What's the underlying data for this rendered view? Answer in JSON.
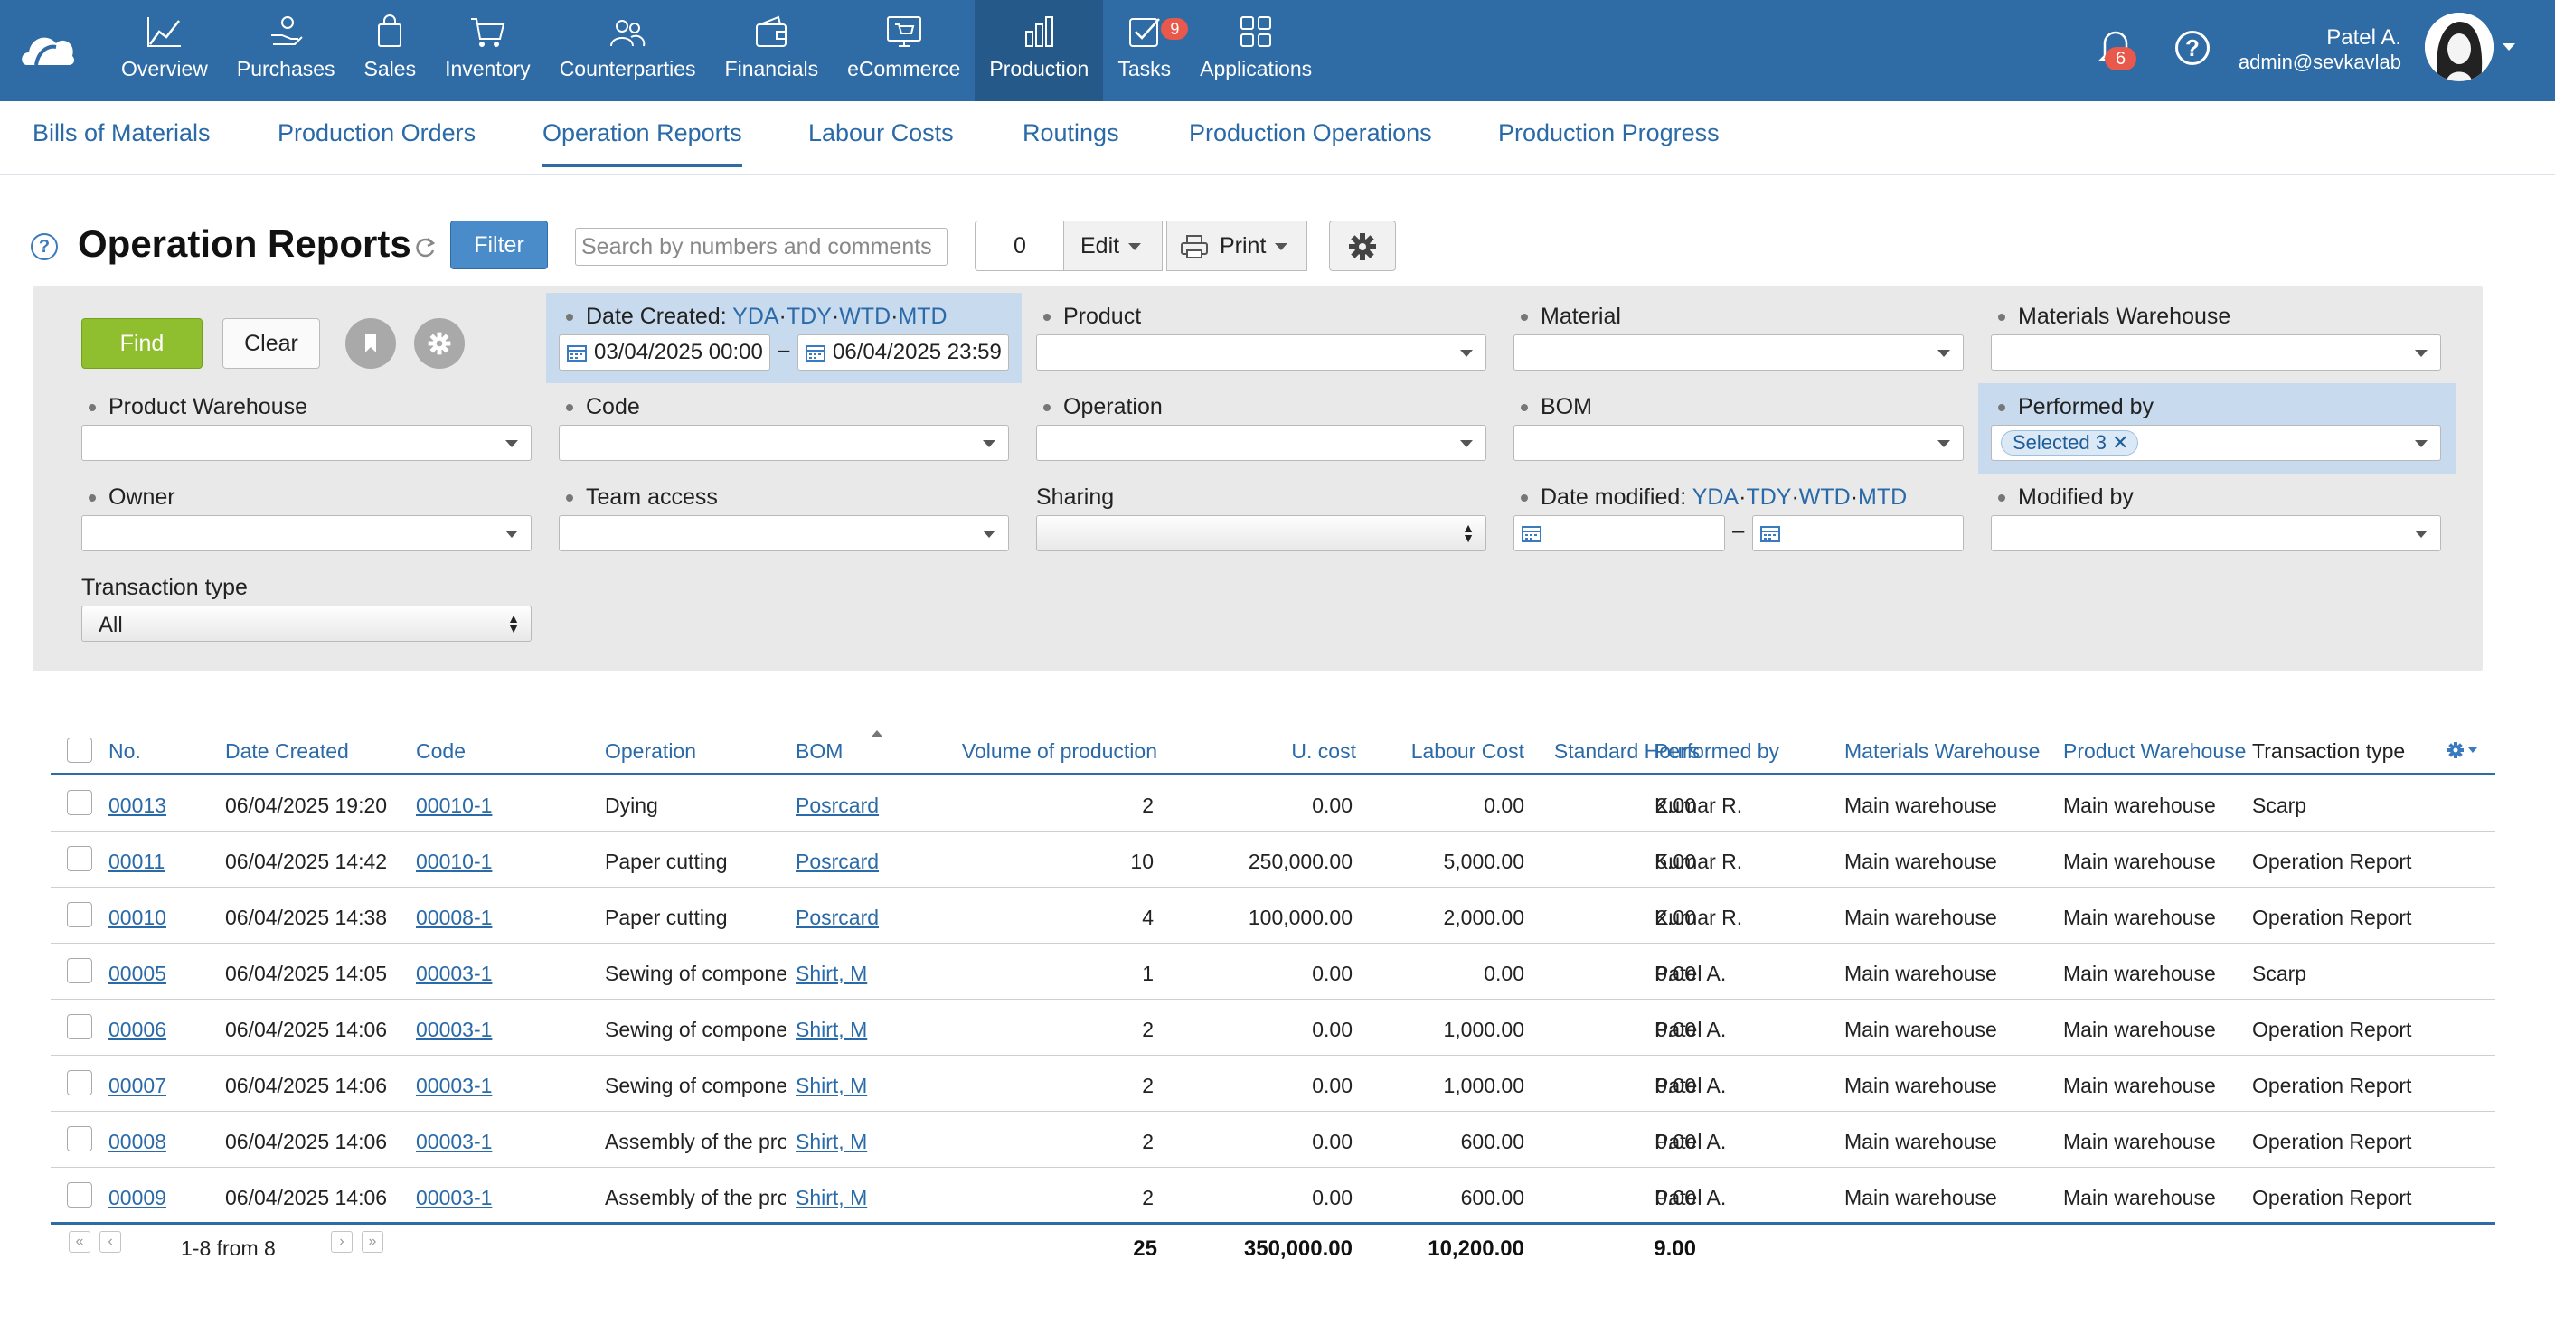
{
  "topnav": {
    "items": [
      {
        "label": "Overview",
        "icon": "overview-chart-icon"
      },
      {
        "label": "Purchases",
        "icon": "purchases-hand-icon"
      },
      {
        "label": "Sales",
        "icon": "sales-bag-icon"
      },
      {
        "label": "Inventory",
        "icon": "inventory-cart-icon"
      },
      {
        "label": "Counterparties",
        "icon": "counterparties-people-icon"
      },
      {
        "label": "Financials",
        "icon": "financials-wallet-icon"
      },
      {
        "label": "eCommerce",
        "icon": "ecommerce-screen-icon"
      },
      {
        "label": "Production",
        "icon": "production-chart-icon"
      },
      {
        "label": "Tasks",
        "icon": "tasks-check-icon",
        "badge": "9"
      },
      {
        "label": "Applications",
        "icon": "applications-grid-icon"
      }
    ],
    "active": "Production",
    "notifications_count": "6",
    "user_name": "Patel A.",
    "user_email": "admin@sevkavlab"
  },
  "subnav": {
    "items": [
      "Bills of Materials",
      "Production Orders",
      "Operation Reports",
      "Labour Costs",
      "Routings",
      "Production Operations",
      "Production Progress"
    ],
    "active": "Operation Reports"
  },
  "toolbar": {
    "title": "Operation Reports",
    "filter_label": "Filter",
    "search_placeholder": "Search by numbers and comments",
    "selected_count": "0",
    "edit_label": "Edit",
    "print_label": "Print"
  },
  "filters": {
    "find_label": "Find",
    "clear_label": "Clear",
    "date_created_label": "Date Created:",
    "shortcuts": [
      "YDA",
      "TDY",
      "WTD",
      "MTD"
    ],
    "date_created_from": "03/04/2025 00:00",
    "date_created_to": "06/04/2025 23:59",
    "product_label": "Product",
    "material_label": "Material",
    "materials_warehouse_label": "Materials Warehouse",
    "product_warehouse_label": "Product Warehouse",
    "code_label": "Code",
    "operation_label": "Operation",
    "bom_label": "BOM",
    "performed_by_label": "Performed by",
    "performed_by_chip": "Selected 3",
    "owner_label": "Owner",
    "team_access_label": "Team access",
    "sharing_label": "Sharing",
    "date_modified_label": "Date modified:",
    "modified_by_label": "Modified by",
    "transaction_type_label": "Transaction type",
    "transaction_type_value": "All"
  },
  "table": {
    "columns": [
      "No.",
      "Date Created",
      "Code",
      "Operation",
      "BOM",
      "Volume of production",
      "U. cost",
      "Labour Cost",
      "Standard Hours",
      "Performed by",
      "Materials Warehouse",
      "Product Warehouse",
      "Transaction type"
    ],
    "rows": [
      {
        "no": "00013",
        "date": "06/04/2025 19:20",
        "code": "00010-1",
        "operation": "Dying",
        "bom": "Posrcard",
        "volume": "2",
        "ucost": "0.00",
        "labour": "0.00",
        "hours": "2.00",
        "performed": "Kumar R.",
        "mat_wh": "Main warehouse",
        "prod_wh": "Main warehouse",
        "type": "Scarp"
      },
      {
        "no": "00011",
        "date": "06/04/2025 14:42",
        "code": "00010-1",
        "operation": "Paper cutting",
        "bom": "Posrcard",
        "volume": "10",
        "ucost": "250,000.00",
        "labour": "5,000.00",
        "hours": "5.00",
        "performed": "Kumar R.",
        "mat_wh": "Main warehouse",
        "prod_wh": "Main warehouse",
        "type": "Operation Report"
      },
      {
        "no": "00010",
        "date": "06/04/2025 14:38",
        "code": "00008-1",
        "operation": "Paper cutting",
        "bom": "Posrcard",
        "volume": "4",
        "ucost": "100,000.00",
        "labour": "2,000.00",
        "hours": "2.00",
        "performed": "Kumar R.",
        "mat_wh": "Main warehouse",
        "prod_wh": "Main warehouse",
        "type": "Operation Report"
      },
      {
        "no": "00005",
        "date": "06/04/2025 14:05",
        "code": "00003-1",
        "operation": "Sewing of componen",
        "bom": "Shirt, M",
        "volume": "1",
        "ucost": "0.00",
        "labour": "0.00",
        "hours": "0.00",
        "performed": "Patel A.",
        "mat_wh": "Main warehouse",
        "prod_wh": "Main warehouse",
        "type": "Scarp"
      },
      {
        "no": "00006",
        "date": "06/04/2025 14:06",
        "code": "00003-1",
        "operation": "Sewing of componen",
        "bom": "Shirt, M",
        "volume": "2",
        "ucost": "0.00",
        "labour": "1,000.00",
        "hours": "0.00",
        "performed": "Patel A.",
        "mat_wh": "Main warehouse",
        "prod_wh": "Main warehouse",
        "type": "Operation Report"
      },
      {
        "no": "00007",
        "date": "06/04/2025 14:06",
        "code": "00003-1",
        "operation": "Sewing of componen",
        "bom": "Shirt, M",
        "volume": "2",
        "ucost": "0.00",
        "labour": "1,000.00",
        "hours": "0.00",
        "performed": "Patel A.",
        "mat_wh": "Main warehouse",
        "prod_wh": "Main warehouse",
        "type": "Operation Report"
      },
      {
        "no": "00008",
        "date": "06/04/2025 14:06",
        "code": "00003-1",
        "operation": "Assembly of the proc",
        "bom": "Shirt, M",
        "volume": "2",
        "ucost": "0.00",
        "labour": "600.00",
        "hours": "0.00",
        "performed": "Patel A.",
        "mat_wh": "Main warehouse",
        "prod_wh": "Main warehouse",
        "type": "Operation Report"
      },
      {
        "no": "00009",
        "date": "06/04/2025 14:06",
        "code": "00003-1",
        "operation": "Assembly of the proc",
        "bom": "Shirt, M",
        "volume": "2",
        "ucost": "0.00",
        "labour": "600.00",
        "hours": "0.00",
        "performed": "Patel A.",
        "mat_wh": "Main warehouse",
        "prod_wh": "Main warehouse",
        "type": "Operation Report"
      }
    ],
    "footer": {
      "range": "1-8 from 8",
      "total_volume": "25",
      "total_ucost": "350,000.00",
      "total_labour": "10,200.00",
      "total_hours": "9.00"
    }
  }
}
